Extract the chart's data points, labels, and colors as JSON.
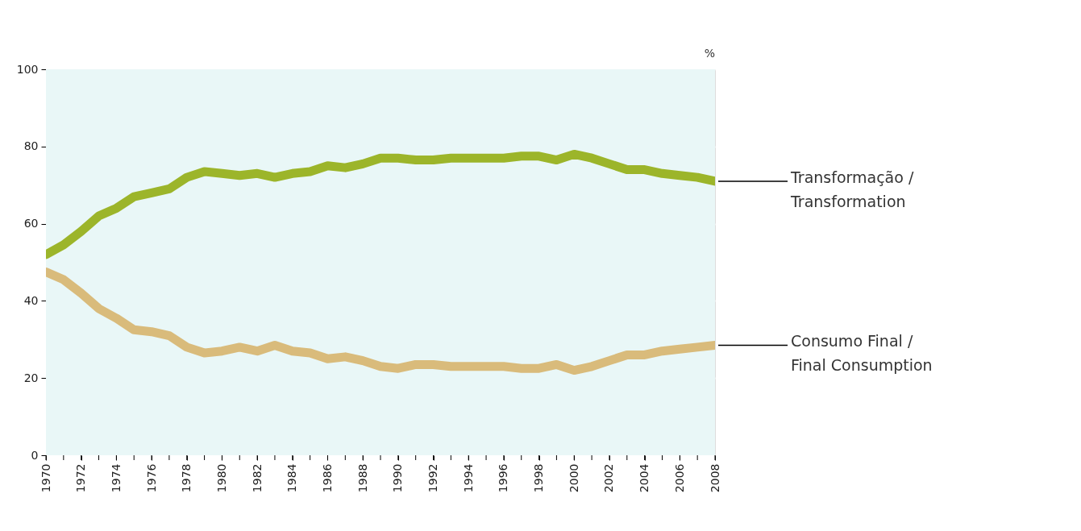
{
  "chart_data": {
    "type": "line",
    "ylabel": "%",
    "x": [
      1970,
      1971,
      1972,
      1973,
      1974,
      1975,
      1976,
      1977,
      1978,
      1979,
      1980,
      1981,
      1982,
      1983,
      1984,
      1985,
      1986,
      1987,
      1988,
      1989,
      1990,
      1991,
      1992,
      1993,
      1994,
      1995,
      1996,
      1997,
      1998,
      1999,
      2000,
      2001,
      2002,
      2003,
      2004,
      2005,
      2006,
      2007,
      2008
    ],
    "series": [
      {
        "name": "Transformação /\nTransformation",
        "color": "#9cb52a",
        "values": [
          52,
          54.5,
          58,
          62,
          64,
          67,
          68,
          69,
          72,
          73.5,
          73,
          72.5,
          73,
          72,
          73,
          73.5,
          75,
          74.5,
          75.5,
          77,
          77,
          76.5,
          76.5,
          77,
          77,
          77,
          77,
          77.5,
          77.5,
          76.5,
          78,
          77,
          75.5,
          74,
          74,
          73,
          72.5,
          72,
          71
        ]
      },
      {
        "name": "Consumo Final /\nFinal Consumption",
        "color": "#d9bb7b",
        "values": [
          47.5,
          45.5,
          42,
          38,
          35.5,
          32.5,
          32,
          31,
          28,
          26.5,
          27,
          28,
          27,
          28.5,
          27,
          26.5,
          25,
          25.5,
          24.5,
          23,
          22.5,
          23.5,
          23.5,
          23,
          23,
          23,
          23,
          22.5,
          22.5,
          23.5,
          22,
          23,
          24.5,
          26,
          26,
          27,
          27.5,
          28,
          28.5
        ]
      }
    ],
    "xlim": [
      1970,
      2008
    ],
    "xticks": [
      1970,
      {
        "value": 1971,
        "label": null
      },
      1972,
      {
        "value": 1973,
        "label": null
      },
      1974,
      {
        "value": 1975,
        "label": null
      },
      1976,
      {
        "value": 1977,
        "label": null
      },
      1978,
      {
        "value": 1979,
        "label": null
      },
      1980,
      {
        "value": 1981,
        "label": null
      },
      1982,
      {
        "value": 1983,
        "label": null
      },
      1984,
      {
        "value": 1985,
        "label": null
      },
      1986,
      {
        "value": 1987,
        "label": null
      },
      1988,
      {
        "value": 1989,
        "label": null
      },
      1990,
      {
        "value": 1991,
        "label": null
      },
      1992,
      {
        "value": 1993,
        "label": null
      },
      1994,
      {
        "value": 1995,
        "label": null
      },
      1996,
      {
        "value": 1997,
        "label": null
      },
      1998,
      {
        "value": 1999,
        "label": null
      },
      2000,
      {
        "value": 2001,
        "label": null
      },
      2002,
      {
        "value": 2003,
        "label": null
      },
      2004,
      {
        "value": 2005,
        "label": null
      },
      2006,
      {
        "value": 2007,
        "label": null
      },
      2008
    ],
    "ylim": [
      0,
      100
    ],
    "yticks": [
      0,
      20,
      40,
      60,
      80,
      100
    ],
    "grid": "y",
    "marker": "none",
    "line_style": "solid"
  }
}
